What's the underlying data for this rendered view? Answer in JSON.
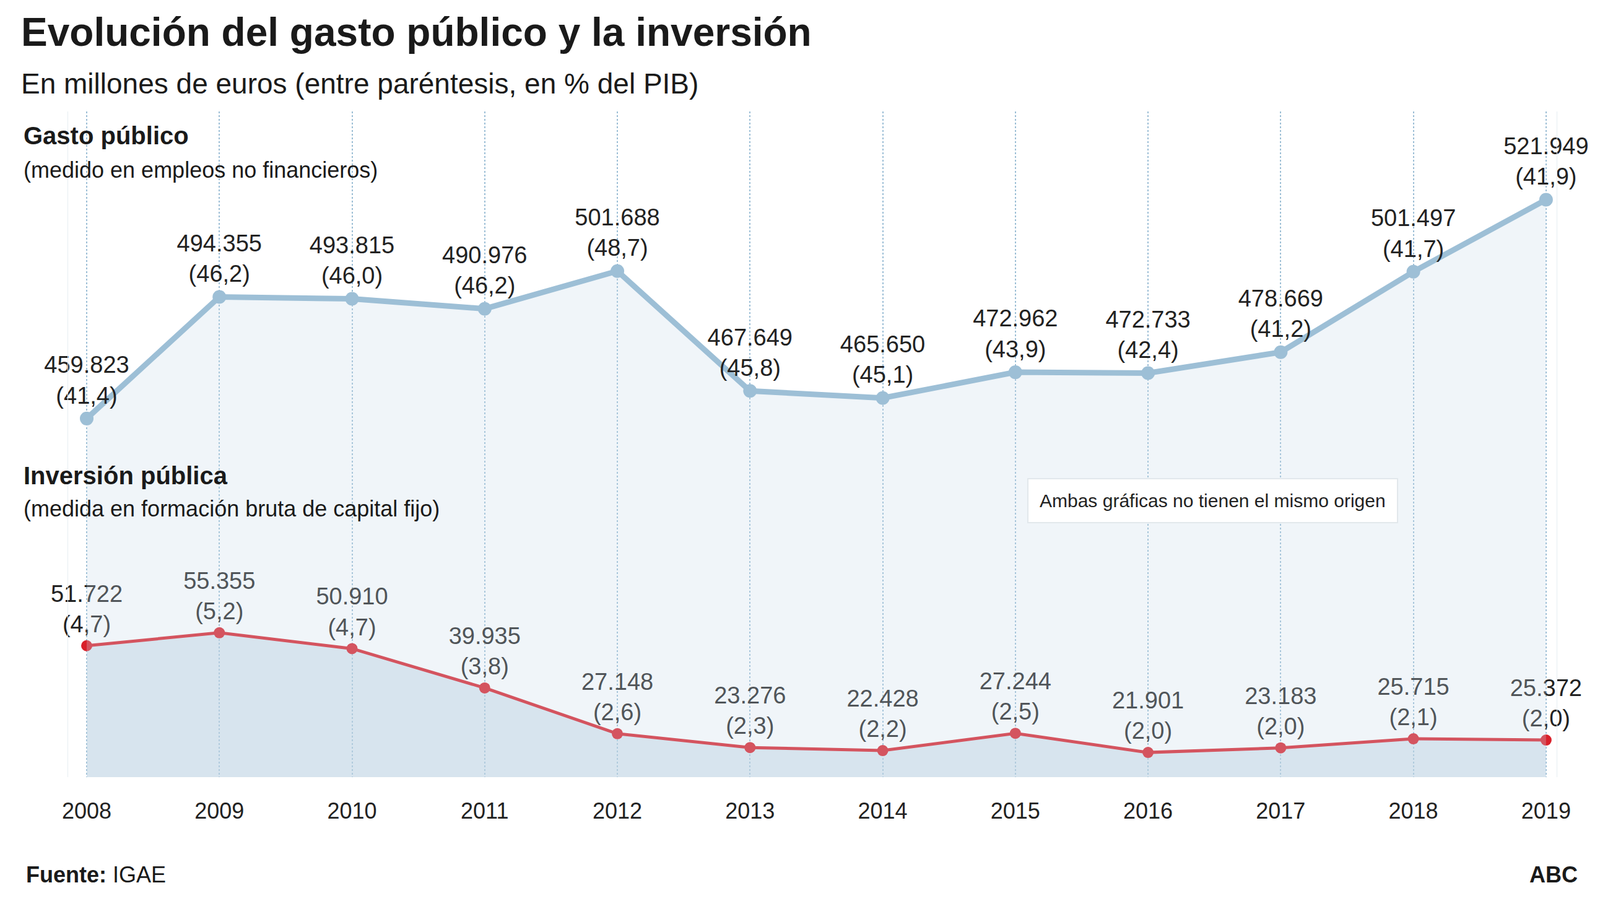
{
  "chart_data": {
    "type": "line",
    "title": "Evolución del gasto público y la inversión",
    "subtitle": "En millones de euros (entre paréntesis, en % del PIB)",
    "note": "Ambas gráficas no tienen el mismo origen",
    "source_label": "Fuente:",
    "source": "IGAE",
    "credit": "ABC",
    "x": [
      2008,
      2009,
      2010,
      2011,
      2012,
      2013,
      2014,
      2015,
      2016,
      2017,
      2018,
      2019
    ],
    "xlim": [
      2007.86,
      2019.08
    ],
    "xticks": [
      2008,
      2009,
      2010,
      2011,
      2012,
      2013,
      2014,
      2015,
      2016,
      2017,
      2018,
      2019
    ],
    "ylim": [
      15000,
      201000
    ],
    "yticks": [],
    "y2lim": [
      358000,
      547000
    ],
    "y2ticks": [],
    "grid": true,
    "tick_labels": "x",
    "data_labels": true,
    "series": [
      {
        "name": "Gasto público",
        "subtitle": "(medido en empleos no financieros)",
        "axis": "y2",
        "color": "#9dbfd6",
        "values": [
          459823,
          494355,
          493815,
          490976,
          501688,
          467649,
          465650,
          472962,
          472733,
          478669,
          501497,
          521949
        ],
        "value_labels": [
          "459.823",
          "494.355",
          "493.815",
          "490.976",
          "501.688",
          "467.649",
          "465.650",
          "472.962",
          "472.733",
          "478.669",
          "501.497",
          "521.949"
        ],
        "pct_values": [
          41.4,
          46.2,
          46.0,
          46.2,
          48.7,
          45.8,
          45.1,
          43.9,
          42.4,
          41.2,
          41.7,
          41.9
        ],
        "pct_labels": [
          "(41,4)",
          "(46,2)",
          "(46,0)",
          "(46,2)",
          "(48,7)",
          "(45,8)",
          "(45,1)",
          "(43,9)",
          "(42,4)",
          "(41,2)",
          "(41,7)",
          "(41,9)"
        ]
      },
      {
        "name": "Inversión pública",
        "subtitle": "(medida en formación bruta de capital fijo)",
        "color": "#d9202a",
        "values": [
          51722,
          55355,
          50910,
          39935,
          27148,
          23276,
          22428,
          27244,
          21901,
          23183,
          25715,
          25372
        ],
        "value_labels": [
          "51.722",
          "55.355",
          "50.910",
          "39.935",
          "27.148",
          "23.276",
          "22.428",
          "27.244",
          "21.901",
          "23.183",
          "25.715",
          "25.372"
        ],
        "pct_values": [
          4.7,
          5.2,
          4.7,
          3.8,
          2.6,
          2.3,
          2.2,
          2.5,
          2.0,
          2.0,
          2.1,
          2.0
        ],
        "pct_labels": [
          "(4,7)",
          "(5,2)",
          "(4,7)",
          "(3,8)",
          "(2,6)",
          "(2,3)",
          "(2,2)",
          "(2,5)",
          "(2,0)",
          "(2,0)",
          "(2,1)",
          "(2,0)"
        ]
      }
    ]
  }
}
